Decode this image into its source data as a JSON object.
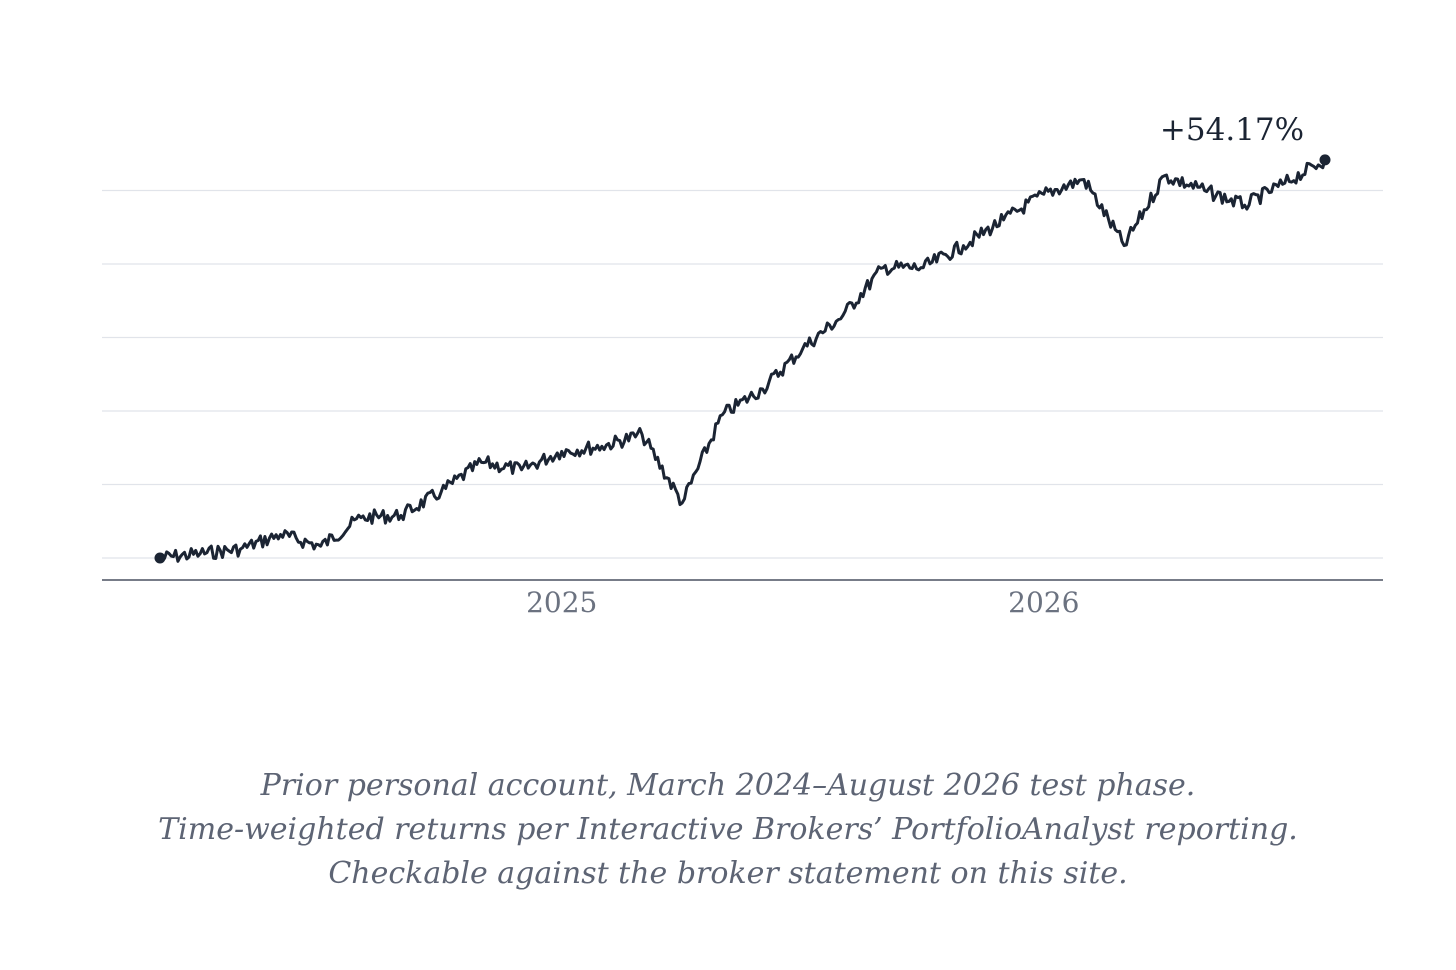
{
  "chart_data": {
    "type": "line",
    "title": "",
    "xlabel": "",
    "ylabel": "",
    "x_tick_labels": [
      "2025",
      "2026"
    ],
    "x_range": [
      "2024-03",
      "2026-08"
    ],
    "y_range": [
      -5,
      60
    ],
    "y_ticks": [
      0,
      10,
      20,
      30,
      40,
      50
    ],
    "grid": "horizontal",
    "legend": "none",
    "end_label": "+54.17%",
    "series": [
      {
        "color": "#1b2433",
        "points": [
          [
            "2024-03",
            0
          ],
          [
            "2024-04",
            0.6
          ],
          [
            "2024-05",
            1.2
          ],
          [
            "2024-06",
            3.2
          ],
          [
            "2024-07",
            1.6
          ],
          [
            "2024-08",
            5.5
          ],
          [
            "2024-09",
            5.8
          ],
          [
            "2024-10",
            9.0
          ],
          [
            "2024-11",
            13.0
          ],
          [
            "2024-12",
            12.0
          ],
          [
            "2025-01",
            14.5
          ],
          [
            "2025-02",
            15.2
          ],
          [
            "2025-03",
            16.8
          ],
          [
            "2025-04",
            7.5
          ],
          [
            "2025-05",
            19.5
          ],
          [
            "2025-06",
            23.0
          ],
          [
            "2025-07",
            28.5
          ],
          [
            "2025-08",
            33.0
          ],
          [
            "2025-09",
            39.5
          ],
          [
            "2025-10",
            39.5
          ],
          [
            "2025-11",
            42.5
          ],
          [
            "2025-12",
            46.0
          ],
          [
            "2026-01",
            49.5
          ],
          [
            "2026-02",
            51.5
          ],
          [
            "2026-03",
            42.5
          ],
          [
            "2026-04",
            52.0
          ],
          [
            "2026-05",
            50.0
          ],
          [
            "2026-06",
            48.0
          ],
          [
            "2026-07",
            51.0
          ],
          [
            "2026-08",
            54.17
          ]
        ]
      }
    ]
  },
  "caption": {
    "line1": "Prior personal account, March 2024–August 2026 test phase.",
    "line2": "Time-weighted returns per Interactive Brokers’ PortfolioAnalyst reporting.",
    "line3": "Checkable against the broker statement on this site."
  }
}
